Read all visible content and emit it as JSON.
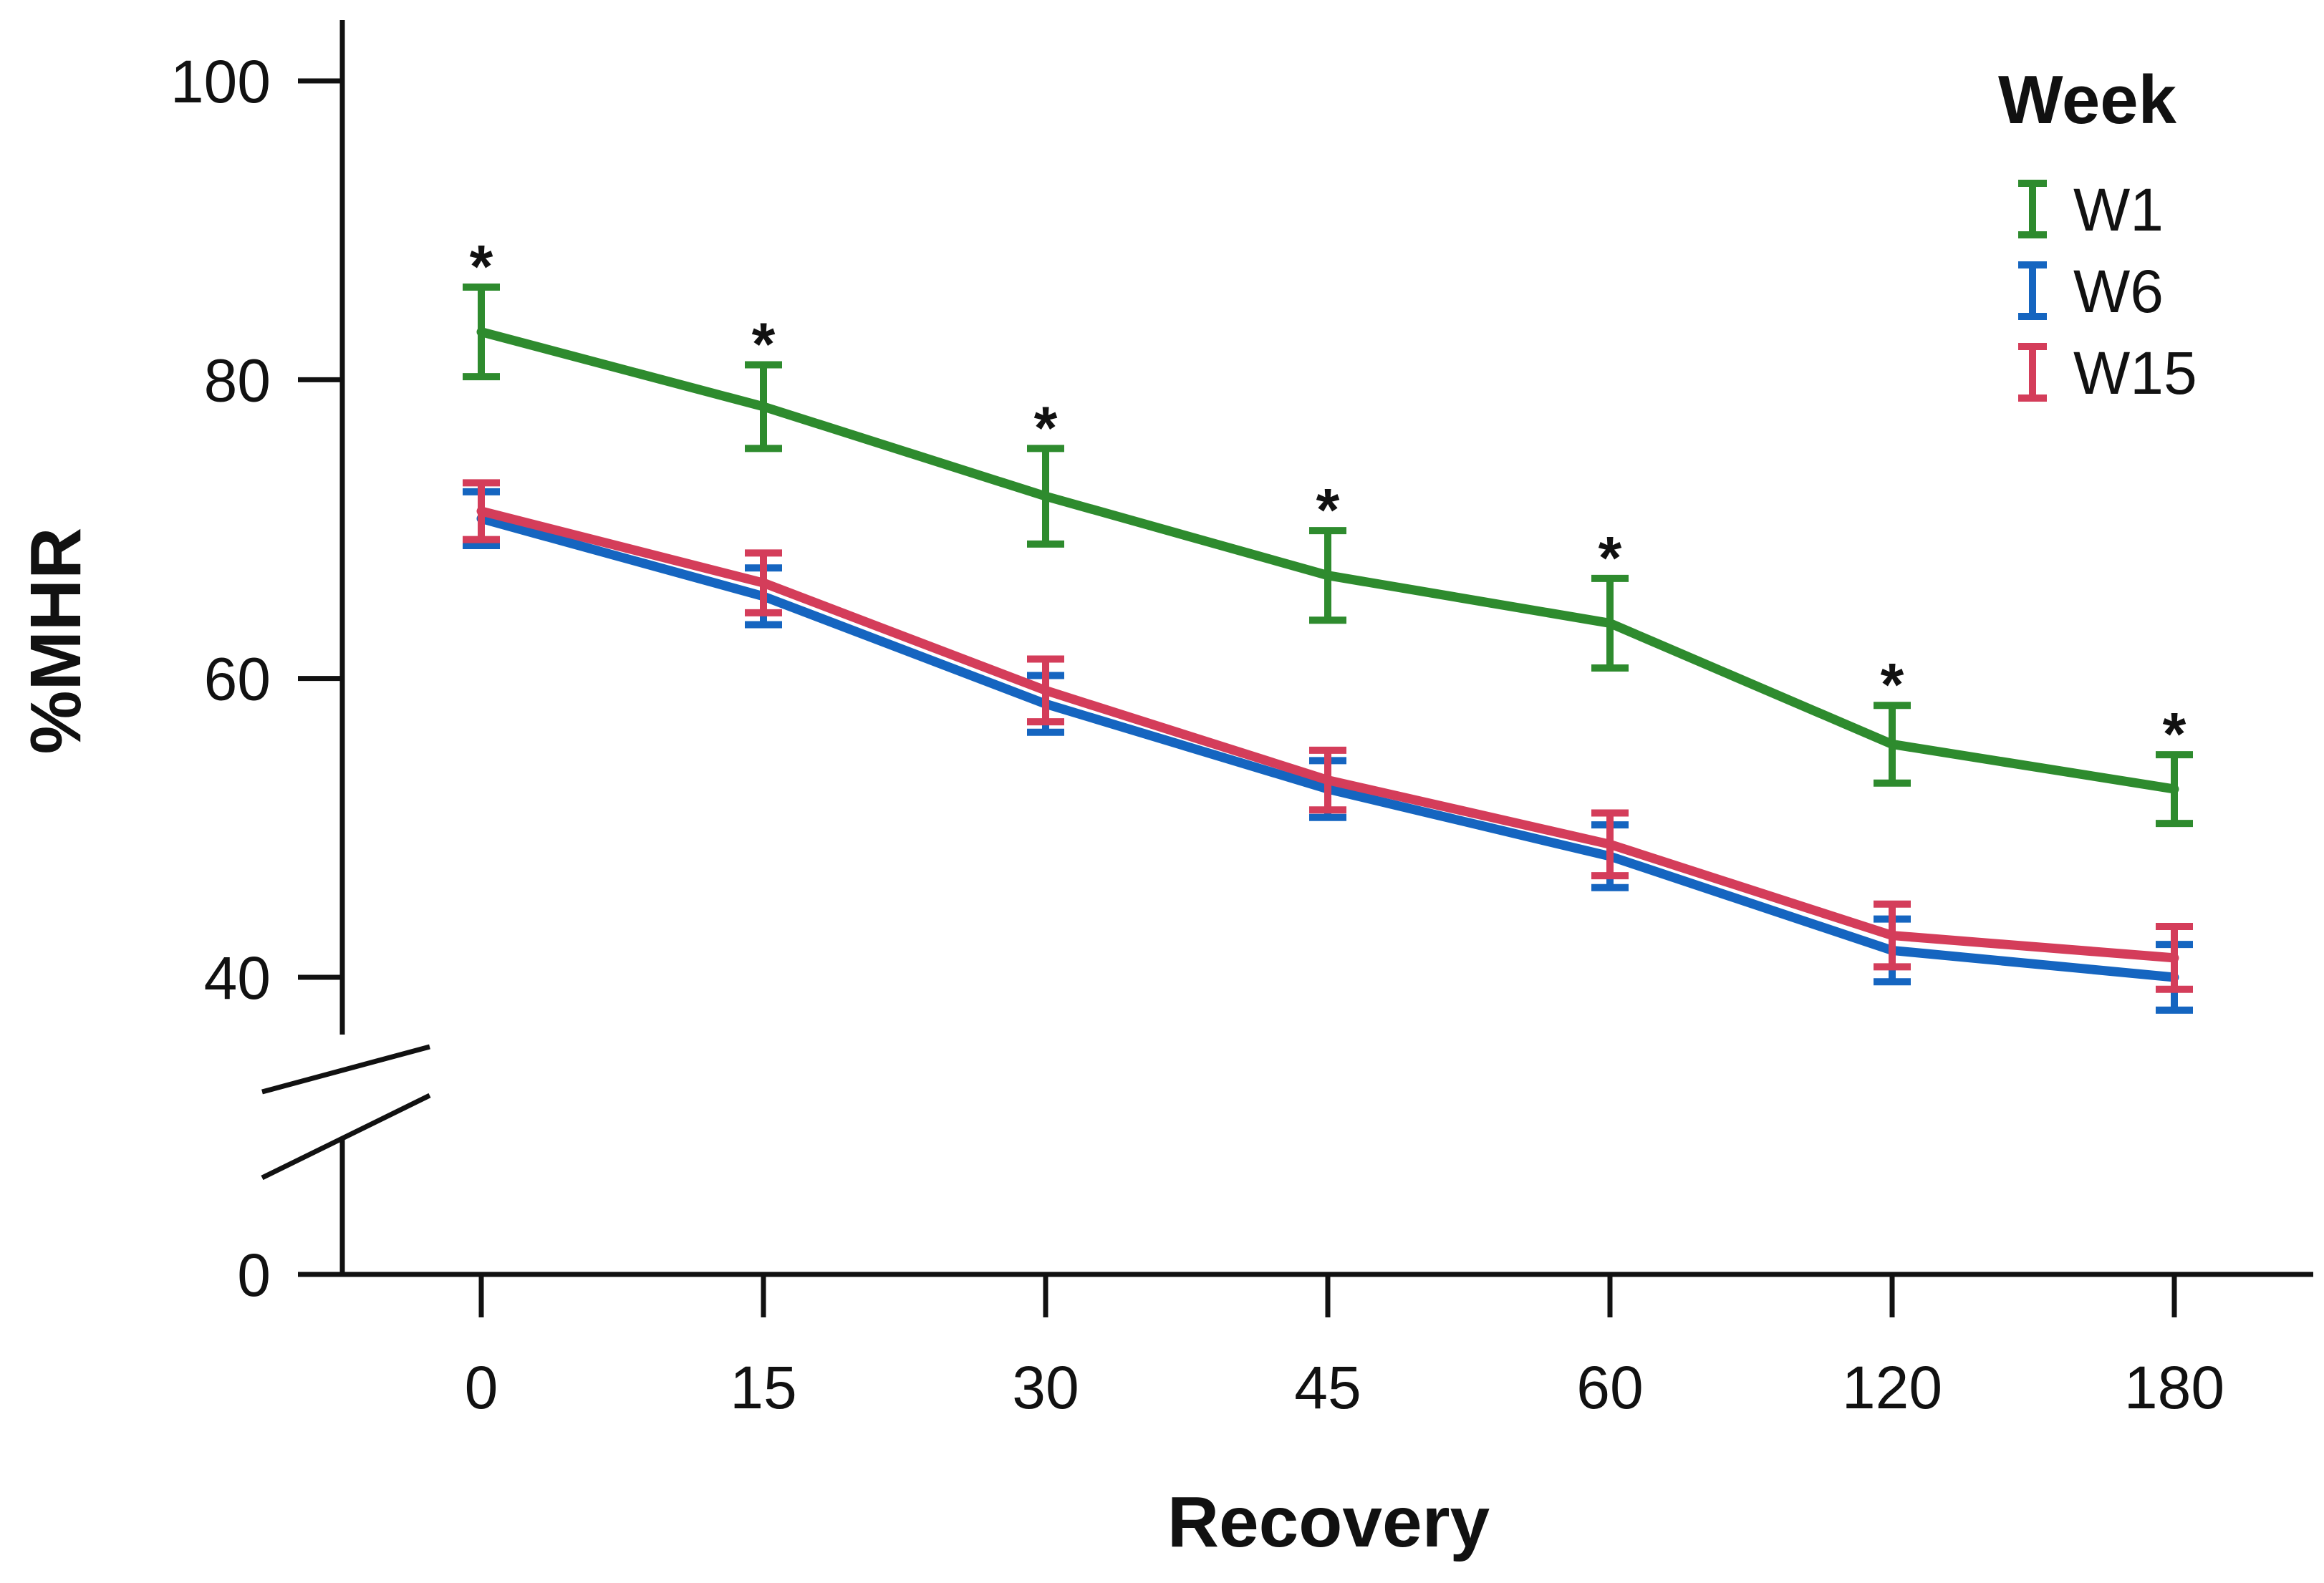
{
  "chart_data": {
    "type": "line",
    "title": "",
    "xlabel": "Recovery",
    "ylabel": "%MHR",
    "categories": [
      "0",
      "15",
      "30",
      "45",
      "60",
      "120",
      "180"
    ],
    "y_ticks": [
      0,
      40,
      60,
      80,
      100
    ],
    "ylim": [
      0,
      100
    ],
    "axis_break": true,
    "legend": {
      "title": "Week",
      "position": "top-right"
    },
    "series": [
      {
        "name": "W1",
        "color": "#2e8b2e",
        "values": [
          83.2,
          78.2,
          72.2,
          66.9,
          63.7,
          55.6,
          52.6
        ],
        "errors": [
          3.0,
          2.8,
          3.2,
          3.0,
          3.0,
          2.6,
          2.3
        ]
      },
      {
        "name": "W6",
        "color": "#1565c0",
        "values": [
          70.7,
          65.5,
          58.3,
          52.6,
          48.1,
          41.8,
          40.0
        ],
        "errors": [
          1.8,
          1.9,
          1.9,
          1.9,
          2.1,
          2.1,
          2.2
        ]
      },
      {
        "name": "W15",
        "color": "#d43d5a",
        "values": [
          71.2,
          66.4,
          59.2,
          53.2,
          48.9,
          42.8,
          41.3
        ],
        "errors": [
          1.9,
          2.0,
          2.1,
          2.0,
          2.1,
          2.1,
          2.1
        ]
      }
    ],
    "significance": [
      "*",
      "*",
      "*",
      "*",
      "*",
      "*",
      "*"
    ]
  }
}
